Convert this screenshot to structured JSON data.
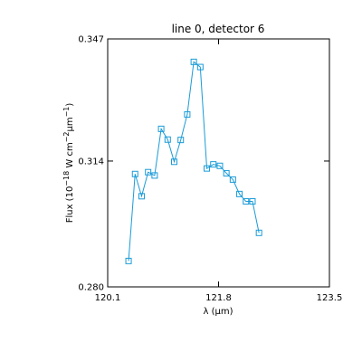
{
  "chart_data": {
    "type": "line",
    "title": "line 0, detector 6",
    "xlabel": "λ (μm)",
    "ylabel_parts": {
      "prefix": "Flux (10",
      "exp1": "−18",
      "mid": " W cm",
      "exp2": "−2",
      "unit": "μm",
      "exp3": "−1",
      "suffix": ")"
    },
    "xlim": [
      120.1,
      123.5
    ],
    "ylim": [
      0.28,
      0.347
    ],
    "xticks": [
      {
        "value": 120.1,
        "label": "120.1"
      },
      {
        "value": 121.8,
        "label": "121.8"
      },
      {
        "value": 123.5,
        "label": "123.5"
      }
    ],
    "yticks": [
      {
        "value": 0.28,
        "label": "0.280"
      },
      {
        "value": 0.314,
        "label": "0.314"
      },
      {
        "value": 0.347,
        "label": "0.347"
      }
    ],
    "grid": false,
    "marker": "square",
    "line_color": "#1a9bd7",
    "series": [
      {
        "x": [
          120.42,
          120.52,
          120.62,
          120.72,
          120.82,
          120.92,
          121.02,
          121.12,
          121.22,
          121.32,
          121.42,
          121.52,
          121.62,
          121.72,
          121.82,
          121.92,
          122.02,
          122.12,
          122.22,
          122.32,
          122.42
        ],
        "y": [
          0.287,
          0.3105,
          0.3045,
          0.311,
          0.3101,
          0.3227,
          0.3198,
          0.3138,
          0.3197,
          0.3266,
          0.3408,
          0.3394,
          0.312,
          0.3131,
          0.3127,
          0.3107,
          0.309,
          0.3051,
          0.3031,
          0.3031,
          0.2946
        ]
      }
    ]
  }
}
